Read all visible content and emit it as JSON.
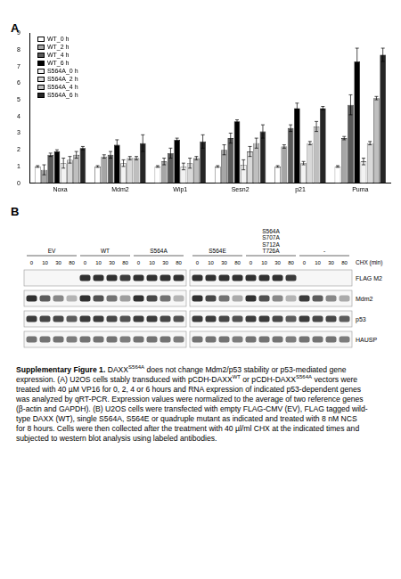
{
  "panel_a": {
    "label": "A"
  },
  "chart_data": {
    "type": "bar",
    "categories": [
      "Noxa",
      "Mdm2",
      "Wip1",
      "Sesn2",
      "p21",
      "Puma"
    ],
    "series": [
      {
        "name": "WT_0 h",
        "color": "#ffffff",
        "values": [
          1,
          1,
          1,
          1,
          1,
          1
        ],
        "errors": [
          0.05,
          0.05,
          0.05,
          0.05,
          0.05,
          0.05
        ]
      },
      {
        "name": "WT_2 h",
        "color": "#a6a6a6",
        "values": [
          0.8,
          1.6,
          1.3,
          2.0,
          2.2,
          2.7
        ],
        "errors": [
          0.3,
          0.1,
          0.2,
          0.3,
          0.1,
          0.1
        ]
      },
      {
        "name": "WT_4 h",
        "color": "#595959",
        "values": [
          1.7,
          1.7,
          1.8,
          2.7,
          3.3,
          4.7
        ],
        "errors": [
          0.1,
          0.2,
          0.3,
          0.3,
          0.2,
          0.6
        ]
      },
      {
        "name": "WT_6 h",
        "color": "#000000",
        "values": [
          1.9,
          2.3,
          2.6,
          3.7,
          4.5,
          7.3
        ],
        "errors": [
          0.1,
          0.3,
          0.1,
          0.1,
          0.3,
          0.8
        ]
      },
      {
        "name": "S564A_0 h",
        "color": "#f2f2f2",
        "values": [
          1.2,
          1.2,
          1.0,
          1.1,
          1.2,
          1.3
        ],
        "errors": [
          0.3,
          0.2,
          0.2,
          0.3,
          0.1,
          0.2
        ]
      },
      {
        "name": "S564A_2 h",
        "color": "#d9d9d9",
        "values": [
          1.4,
          1.5,
          1.2,
          1.9,
          2.4,
          2.4
        ],
        "errors": [
          0.2,
          0.1,
          0.3,
          0.3,
          0.1,
          0.1
        ]
      },
      {
        "name": "S564A_4 h",
        "color": "#bfbfbf",
        "values": [
          1.7,
          1.5,
          1.5,
          2.4,
          3.4,
          5.1
        ],
        "errors": [
          0.2,
          0.1,
          0.1,
          0.3,
          0.3,
          0.1
        ]
      },
      {
        "name": "S564A_6 h",
        "color": "#262626",
        "values": [
          2.1,
          2.4,
          2.5,
          3.1,
          4.5,
          7.7
        ],
        "errors": [
          0.1,
          0.5,
          0.4,
          0.4,
          0.1,
          0.4
        ]
      }
    ],
    "ylim": [
      0,
      9
    ],
    "yticks": [
      0,
      1,
      2,
      3,
      4,
      5,
      6,
      7,
      8,
      9
    ],
    "grid": false,
    "legend": "upper left"
  },
  "panel_b": {
    "label": "B",
    "chx_label": "CHX (min)",
    "groups": [
      {
        "label": [
          "EV"
        ],
        "chx": [
          0,
          10,
          30,
          80
        ]
      },
      {
        "label": [
          "WT"
        ],
        "chx": [
          0,
          10,
          30,
          80
        ]
      },
      {
        "label": [
          "S564A"
        ],
        "chx": [
          0,
          10,
          30,
          80
        ]
      },
      {
        "label": [
          "S564E"
        ],
        "chx": [
          0,
          10,
          30,
          80
        ]
      },
      {
        "label": [
          "S564A",
          "S707A",
          "S712A",
          "T726A"
        ],
        "chx": [
          0,
          10,
          30,
          80
        ]
      },
      {
        "label": [
          "-"
        ],
        "chx": [
          0,
          10,
          30,
          80
        ]
      }
    ],
    "rows": [
      {
        "label": "FLAG M2",
        "intensity": [
          0,
          0,
          0,
          0,
          0.9,
          0.9,
          0.9,
          0.85,
          0.9,
          0.9,
          0.9,
          0.9,
          0.9,
          0.9,
          0.9,
          0.9,
          0.9,
          0.9,
          0.9,
          0.85,
          0,
          0,
          0,
          0
        ]
      },
      {
        "label": "Mdm2",
        "intensity": [
          0.9,
          0.7,
          0.5,
          0.3,
          0.9,
          0.75,
          0.6,
          0.4,
          0.9,
          0.8,
          0.6,
          0.3,
          0.9,
          0.8,
          0.6,
          0.35,
          0.9,
          0.75,
          0.5,
          0.3,
          0.85,
          0.7,
          0.5,
          0.35
        ]
      },
      {
        "label": "p53",
        "intensity": [
          0.85,
          0.8,
          0.8,
          0.7,
          0.85,
          0.85,
          0.8,
          0.75,
          0.85,
          0.85,
          0.8,
          0.75,
          0.85,
          0.85,
          0.8,
          0.75,
          0.85,
          0.85,
          0.8,
          0.7,
          0.85,
          0.8,
          0.8,
          0.7
        ]
      },
      {
        "label": "HAUSP",
        "intensity": [
          0.6,
          0.6,
          0.6,
          0.55,
          0.6,
          0.6,
          0.6,
          0.55,
          0.6,
          0.6,
          0.6,
          0.55,
          0.6,
          0.6,
          0.6,
          0.55,
          0.6,
          0.6,
          0.6,
          0.55,
          0.6,
          0.6,
          0.6,
          0.55
        ]
      }
    ]
  },
  "caption": [
    {
      "text": "Supplementary Figure 1.",
      "format": "bold"
    },
    {
      "text": " DAXX"
    },
    {
      "text": "S564A",
      "format": "sup"
    },
    {
      "text": " does not change Mdm2/p53 stability or p53-mediated gene expression. (A) U2OS cells stably transduced with pCDH-DAXX"
    },
    {
      "text": "WT",
      "format": "sup"
    },
    {
      "text": " or pCDH-DAXX"
    },
    {
      "text": "S564A",
      "format": "sup"
    },
    {
      "text": " vectors were treated with 40 µM VP16 for 0, 2, 4 or 6 hours and RNA expression of indicated p53-dependent genes was analyzed by qRT-PCR. Expression values were normalized to the average of two reference genes (β-actin and GAPDH). (B) U2OS cells were transfected with empty FLAG-CMV (EV), FLAG tagged wild-type DAXX (WT), single S564A, S564E or quadruple mutant as indicated and treated with 8 nM NCS for 8 hours. Cells were then collected after the treatment with 40 µl/ml CHX at the indicated times and subjected to western blot analysis using labeled antibodies."
    }
  ]
}
